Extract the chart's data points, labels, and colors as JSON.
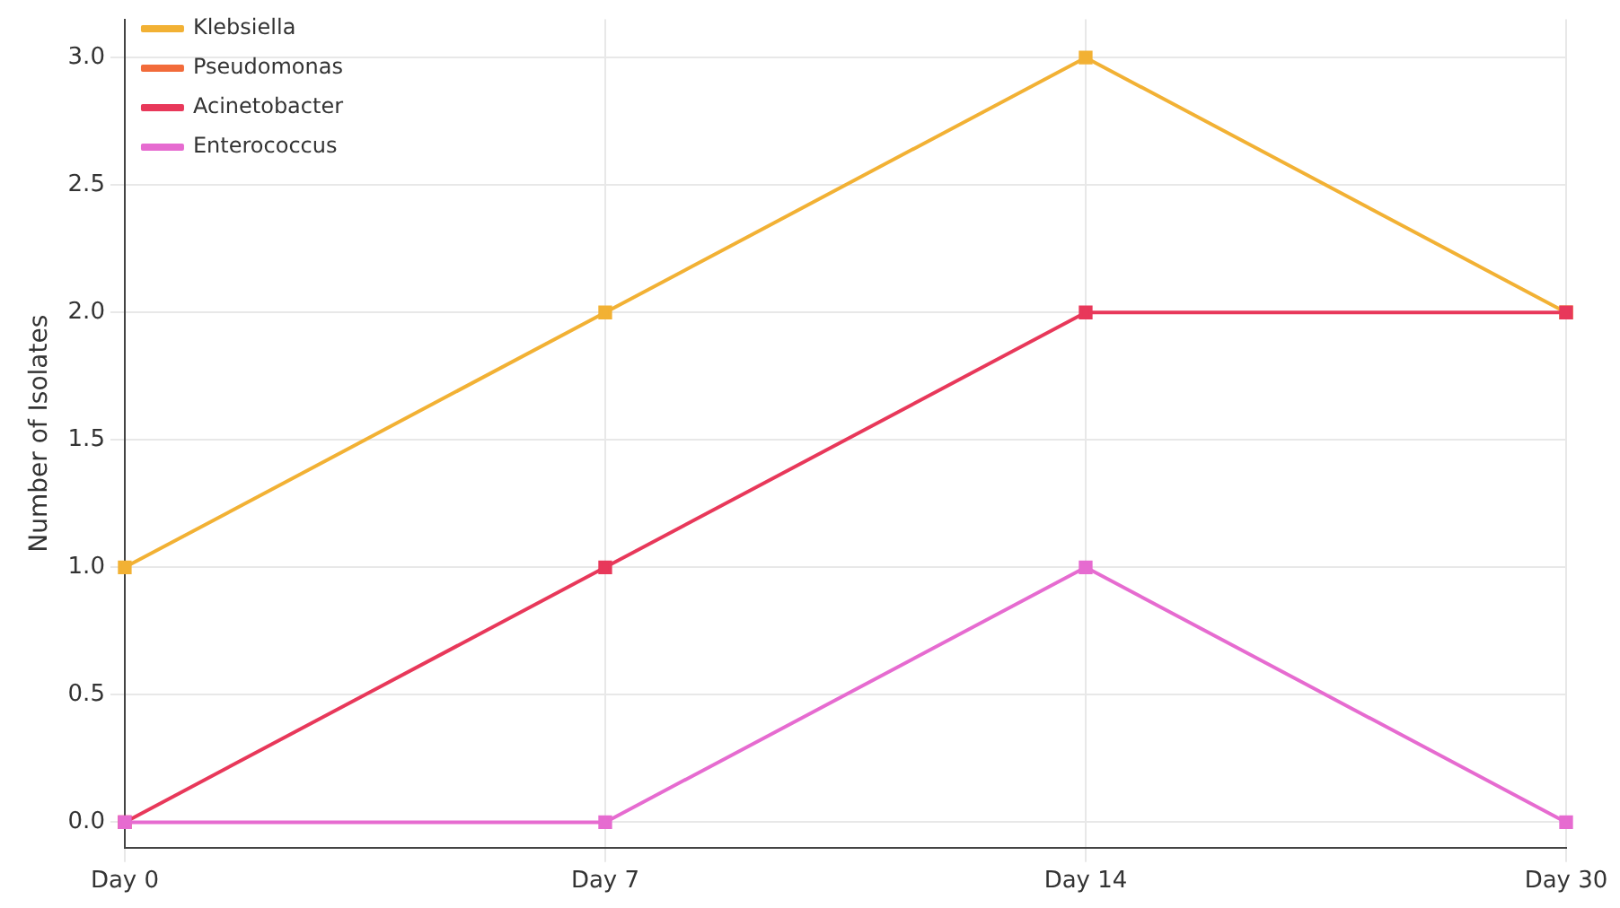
{
  "chart_data": {
    "type": "line",
    "ylabel": "Number of Isolates",
    "categories": [
      "Day 0",
      "Day 7",
      "Day 14",
      "Day 30"
    ],
    "series": [
      {
        "name": "Klebsiella",
        "color": "#f2b134",
        "values": [
          1,
          2,
          3,
          2
        ]
      },
      {
        "name": "Pseudomonas",
        "color": "#f26b3a",
        "values": [
          null,
          null,
          null,
          null
        ]
      },
      {
        "name": "Acinetobacter",
        "color": "#e8385a",
        "values": [
          0,
          1,
          2,
          2
        ]
      },
      {
        "name": "Enterococcus",
        "color": "#e66bd0",
        "values": [
          0,
          0,
          1,
          0
        ]
      }
    ],
    "ylim": [
      -0.1,
      3.15
    ],
    "yticks": [
      {
        "value": 0,
        "label": "0.0"
      },
      {
        "value": 0.5,
        "label": "0.5"
      },
      {
        "value": 1,
        "label": "1.0"
      },
      {
        "value": 1.5,
        "label": "1.5"
      },
      {
        "value": 2,
        "label": "2.0"
      },
      {
        "value": 2.5,
        "label": "2.5"
      },
      {
        "value": 3,
        "label": "3.0"
      }
    ],
    "grid": true,
    "legend": "top left",
    "marker": "square",
    "line_style": "solid"
  }
}
